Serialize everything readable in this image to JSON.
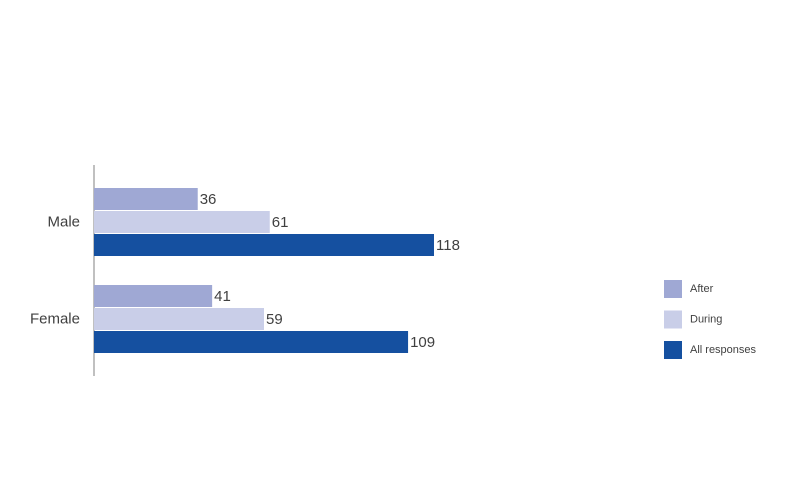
{
  "chart_data": {
    "type": "bar",
    "orientation": "horizontal",
    "categories": [
      "Male",
      "Female"
    ],
    "series": [
      {
        "name": "After",
        "color": "#9fa8d4",
        "values": [
          36,
          41
        ]
      },
      {
        "name": "During",
        "color": "#c9cee8",
        "values": [
          61,
          59
        ]
      },
      {
        "name": "All responses",
        "color": "#1550a0",
        "values": [
          118,
          109
        ]
      }
    ],
    "legend": "right"
  }
}
